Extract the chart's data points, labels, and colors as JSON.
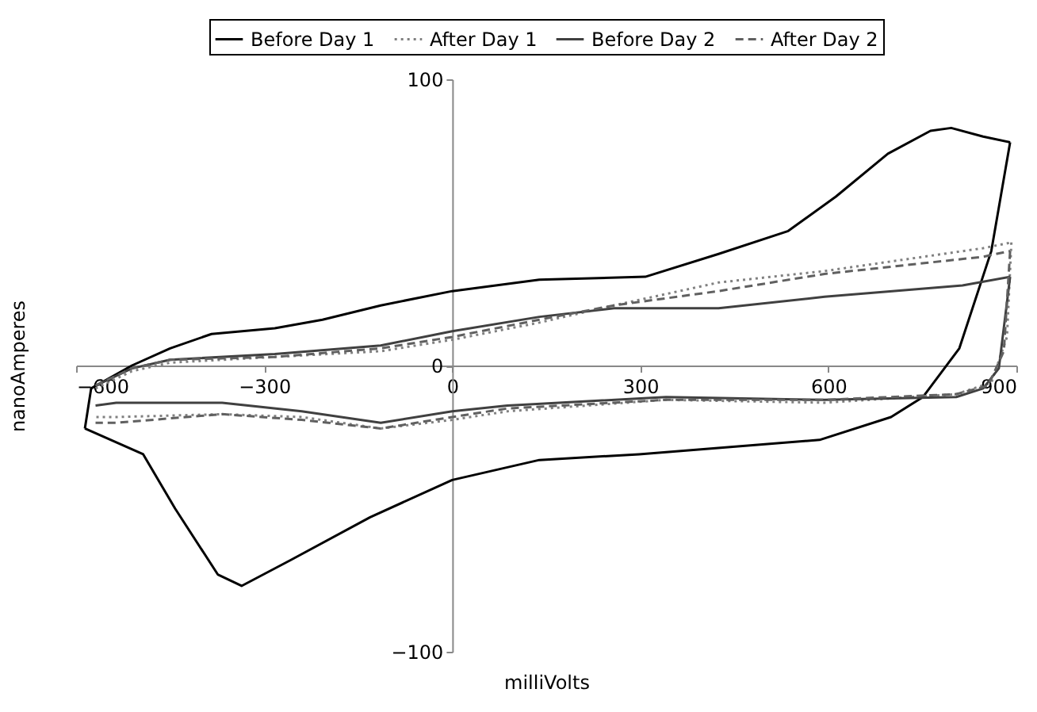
{
  "chart_data": {
    "type": "line",
    "xlabel": "milliVolts",
    "ylabel": "nanoAmperes",
    "xlim": [
      -600,
      900
    ],
    "xticks": [
      -600,
      -300,
      0,
      300,
      600,
      900
    ],
    "ylim": [
      -100,
      100
    ],
    "yticks": [
      -100,
      0,
      100
    ],
    "grid": false,
    "legend": "top",
    "marker": "none",
    "series": [
      {
        "name": "Before Day 1",
        "color": "#000000",
        "line_style": "solid",
        "x": [
          -586,
          -576,
          -511,
          -450,
          -384,
          -283,
          -207,
          -114,
          0,
          139,
          308,
          425,
          536,
          612,
          695,
          763,
          796,
          847,
          890
        ],
        "values": [
          -22,
          -8,
          0,
          6,
          11,
          13,
          16,
          21,
          26,
          30,
          31,
          39,
          47,
          59,
          74,
          82,
          83,
          80,
          78
        ]
      },
      {
        "color": "#000000",
        "line_style": "solid",
        "x": [
          890,
          860,
          809,
          751,
          700,
          586,
          298,
          139,
          0,
          -131,
          -258,
          -336,
          -374,
          -442,
          -493,
          -586
        ],
        "values": [
          78,
          40,
          6,
          -11,
          -18,
          -26,
          -31,
          -33,
          -40,
          -53,
          -68,
          -77,
          -73,
          -50,
          -31,
          -22
        ]
      },
      {
        "name": "After Day 1",
        "color": "#808080",
        "line_style": "dotted",
        "x": [
          -569,
          -511,
          -450,
          -283,
          -114,
          0,
          139,
          258,
          425,
          594,
          847,
          892
        ],
        "values": [
          -8,
          -2,
          1,
          3,
          5,
          9,
          15,
          21,
          29,
          33,
          41,
          43
        ]
      },
      {
        "color": "#808080",
        "line_style": "dotted",
        "x": [
          892,
          885,
          860,
          804,
          594,
          341,
          88,
          0,
          -114,
          -240,
          -367,
          -536,
          -569
        ],
        "values": [
          43,
          10,
          -6,
          -10,
          -13,
          -12,
          -16,
          -19,
          -22,
          -18,
          -17,
          -18,
          -18
        ]
      },
      {
        "name": "Before Day 2",
        "color": "#404040",
        "line_style": "solid",
        "x": [
          -569,
          -511,
          -450,
          -283,
          -114,
          0,
          139,
          258,
          425,
          594,
          814,
          890
        ],
        "values": [
          -7,
          -1,
          2,
          4,
          7,
          12,
          17,
          20,
          20,
          24,
          28,
          31
        ]
      },
      {
        "color": "#404040",
        "line_style": "solid",
        "x": [
          890,
          872,
          847,
          804,
          594,
          341,
          88,
          0,
          -114,
          -240,
          -367,
          -536,
          -569
        ],
        "values": [
          31,
          -1,
          -8,
          -11,
          -12,
          -11,
          -14,
          -16,
          -20,
          -16,
          -13,
          -13,
          -14
        ]
      },
      {
        "name": "After Day 2",
        "color": "#606060",
        "line_style": "dashed",
        "x": [
          -569,
          -511,
          -450,
          -283,
          -114,
          0,
          139,
          258,
          425,
          594,
          847,
          890
        ],
        "values": [
          -7,
          -1,
          2,
          3,
          6,
          10,
          16,
          21,
          26,
          32,
          38,
          40
        ]
      },
      {
        "color": "#606060",
        "line_style": "dashed",
        "x": [
          890,
          880,
          855,
          804,
          594,
          341,
          88,
          0,
          -114,
          -240,
          -367,
          -536,
          -569
        ],
        "values": [
          40,
          5,
          -7,
          -10,
          -12,
          -12,
          -15,
          -18,
          -22,
          -19,
          -17,
          -20,
          -20
        ]
      }
    ]
  }
}
